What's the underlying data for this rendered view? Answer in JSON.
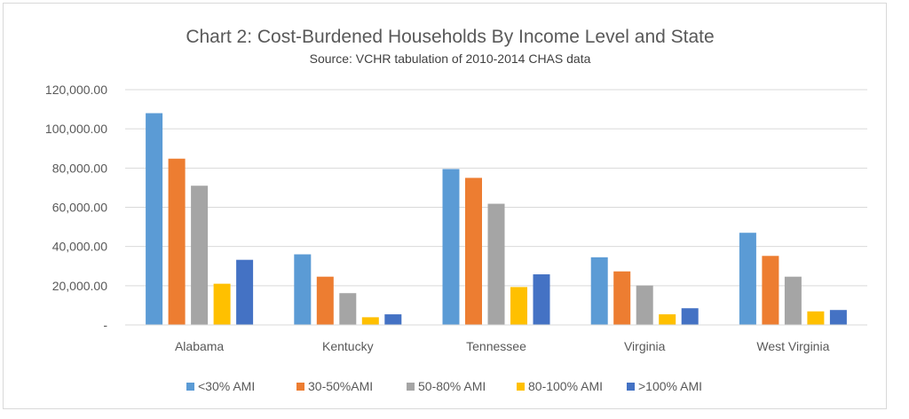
{
  "chart_data": {
    "type": "bar",
    "title": "Chart 2: Cost-Burdened Households By Income Level and State",
    "subtitle": "Source: VCHR tabulation of 2010-2014 CHAS data",
    "xlabel": "",
    "ylabel": "",
    "categories": [
      "Alabama",
      "Kentucky",
      "Tennessee",
      "Virginia",
      "West Virginia"
    ],
    "series": [
      {
        "name": "<30% AMI",
        "color": "#5B9BD5",
        "values": [
          108000,
          36000,
          79500,
          34500,
          47000
        ]
      },
      {
        "name": "30-50%AMI",
        "color": "#ED7D31",
        "values": [
          84800,
          24600,
          75000,
          27300,
          35200
        ]
      },
      {
        "name": "50-80% AMI",
        "color": "#A5A5A5",
        "values": [
          71000,
          16200,
          61800,
          20100,
          24600
        ]
      },
      {
        "name": "80-100% AMI",
        "color": "#FFC000",
        "values": [
          21000,
          3900,
          19300,
          5400,
          6900
        ]
      },
      {
        "name": ">100% AMI",
        "color": "#4472C4",
        "values": [
          33200,
          5400,
          25800,
          8500,
          7600
        ]
      }
    ],
    "ylim": [
      0,
      120000
    ],
    "yticks": [
      0,
      20000,
      40000,
      60000,
      80000,
      100000,
      120000
    ],
    "ytick_labels": [
      "-",
      "20,000.00",
      "40,000.00",
      "60,000.00",
      "80,000.00",
      "100,000.00",
      "120,000.00"
    ],
    "grid": true,
    "legend_position": "bottom"
  }
}
